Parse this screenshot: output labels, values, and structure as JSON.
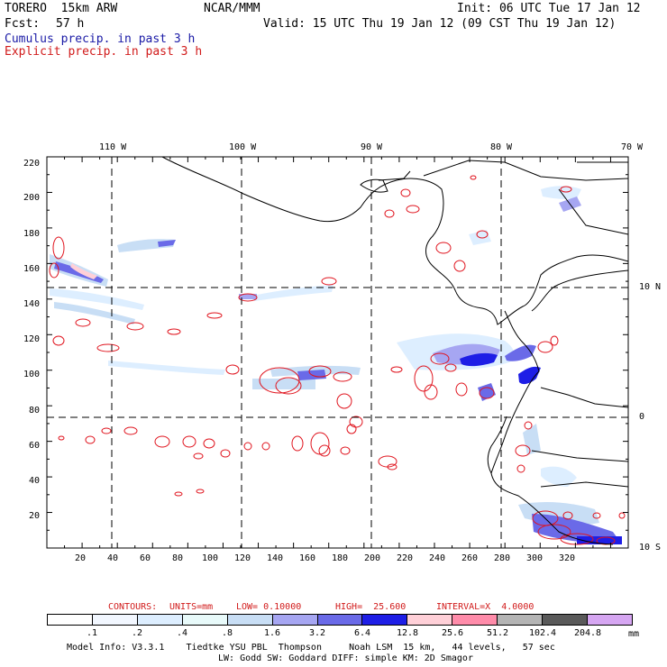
{
  "header": {
    "model_name": "TORERO  15km ARW",
    "org": "NCAR/MMM",
    "init": "Init: 06 UTC Tue 17 Jan 12",
    "fcst_label": "Fcst:",
    "fcst_value": "57 h",
    "valid": "Valid: 15 UTC Thu 19 Jan 12 (09 CST Thu 19 Jan 12)",
    "legend_cumulus": "Cumulus precip. in past 3 h",
    "legend_explicit": "Explicit precip. in past 3 h"
  },
  "colors": {
    "cumulus_text": "#1a1aa6",
    "explicit_text": "#d11a1a",
    "coast": "#000000",
    "grid": "#000000",
    "contour": "#e0141e"
  },
  "axes": {
    "top_lon_labels": [
      "110 W",
      "100 W",
      "90 W",
      "80 W",
      "70 W"
    ],
    "right_lat_labels": [
      "10 N",
      "0",
      "10 S"
    ],
    "left_y_ticks": [
      "220",
      "200",
      "180",
      "160",
      "140",
      "120",
      "100",
      "80",
      "60",
      "40",
      "20"
    ],
    "bottom_x_ticks": [
      "20",
      "40",
      "60",
      "80",
      "100",
      "120",
      "140",
      "160",
      "180",
      "200",
      "220",
      "240",
      "260",
      "280",
      "300",
      "320"
    ]
  },
  "contour_info": {
    "contours": "CONTOURS:",
    "units": "UNITS=mm",
    "low": "LOW= 0.10000",
    "high": "HIGH=  25.600",
    "interval": "INTERVAL=X  4.0000"
  },
  "colorbar": {
    "labels": [
      ".1",
      ".2",
      ".4",
      ".8",
      "1.6",
      "3.2",
      "6.4",
      "12.8",
      "25.6",
      "51.2",
      "102.4",
      "204.8"
    ],
    "unit": "mm",
    "colors": [
      "#ffffff",
      "#f2f7ff",
      "#ddeeff",
      "#e8fafa",
      "#c8def5",
      "#a6a6f2",
      "#6a6ae8",
      "#1e1ee6",
      "#ffd0d8",
      "#ff8caa",
      "#b4b4b4",
      "#5a5a5a",
      "#d6a6f2"
    ]
  },
  "footer": {
    "line1": "Model Info: V3.3.1    Tiedtke YSU PBL  Thompson     Noah LSM  15 km,   44 levels,   57 sec",
    "line2": "LW: Godd SW: Goddard DIFF: simple KM: 2D Smagor"
  }
}
